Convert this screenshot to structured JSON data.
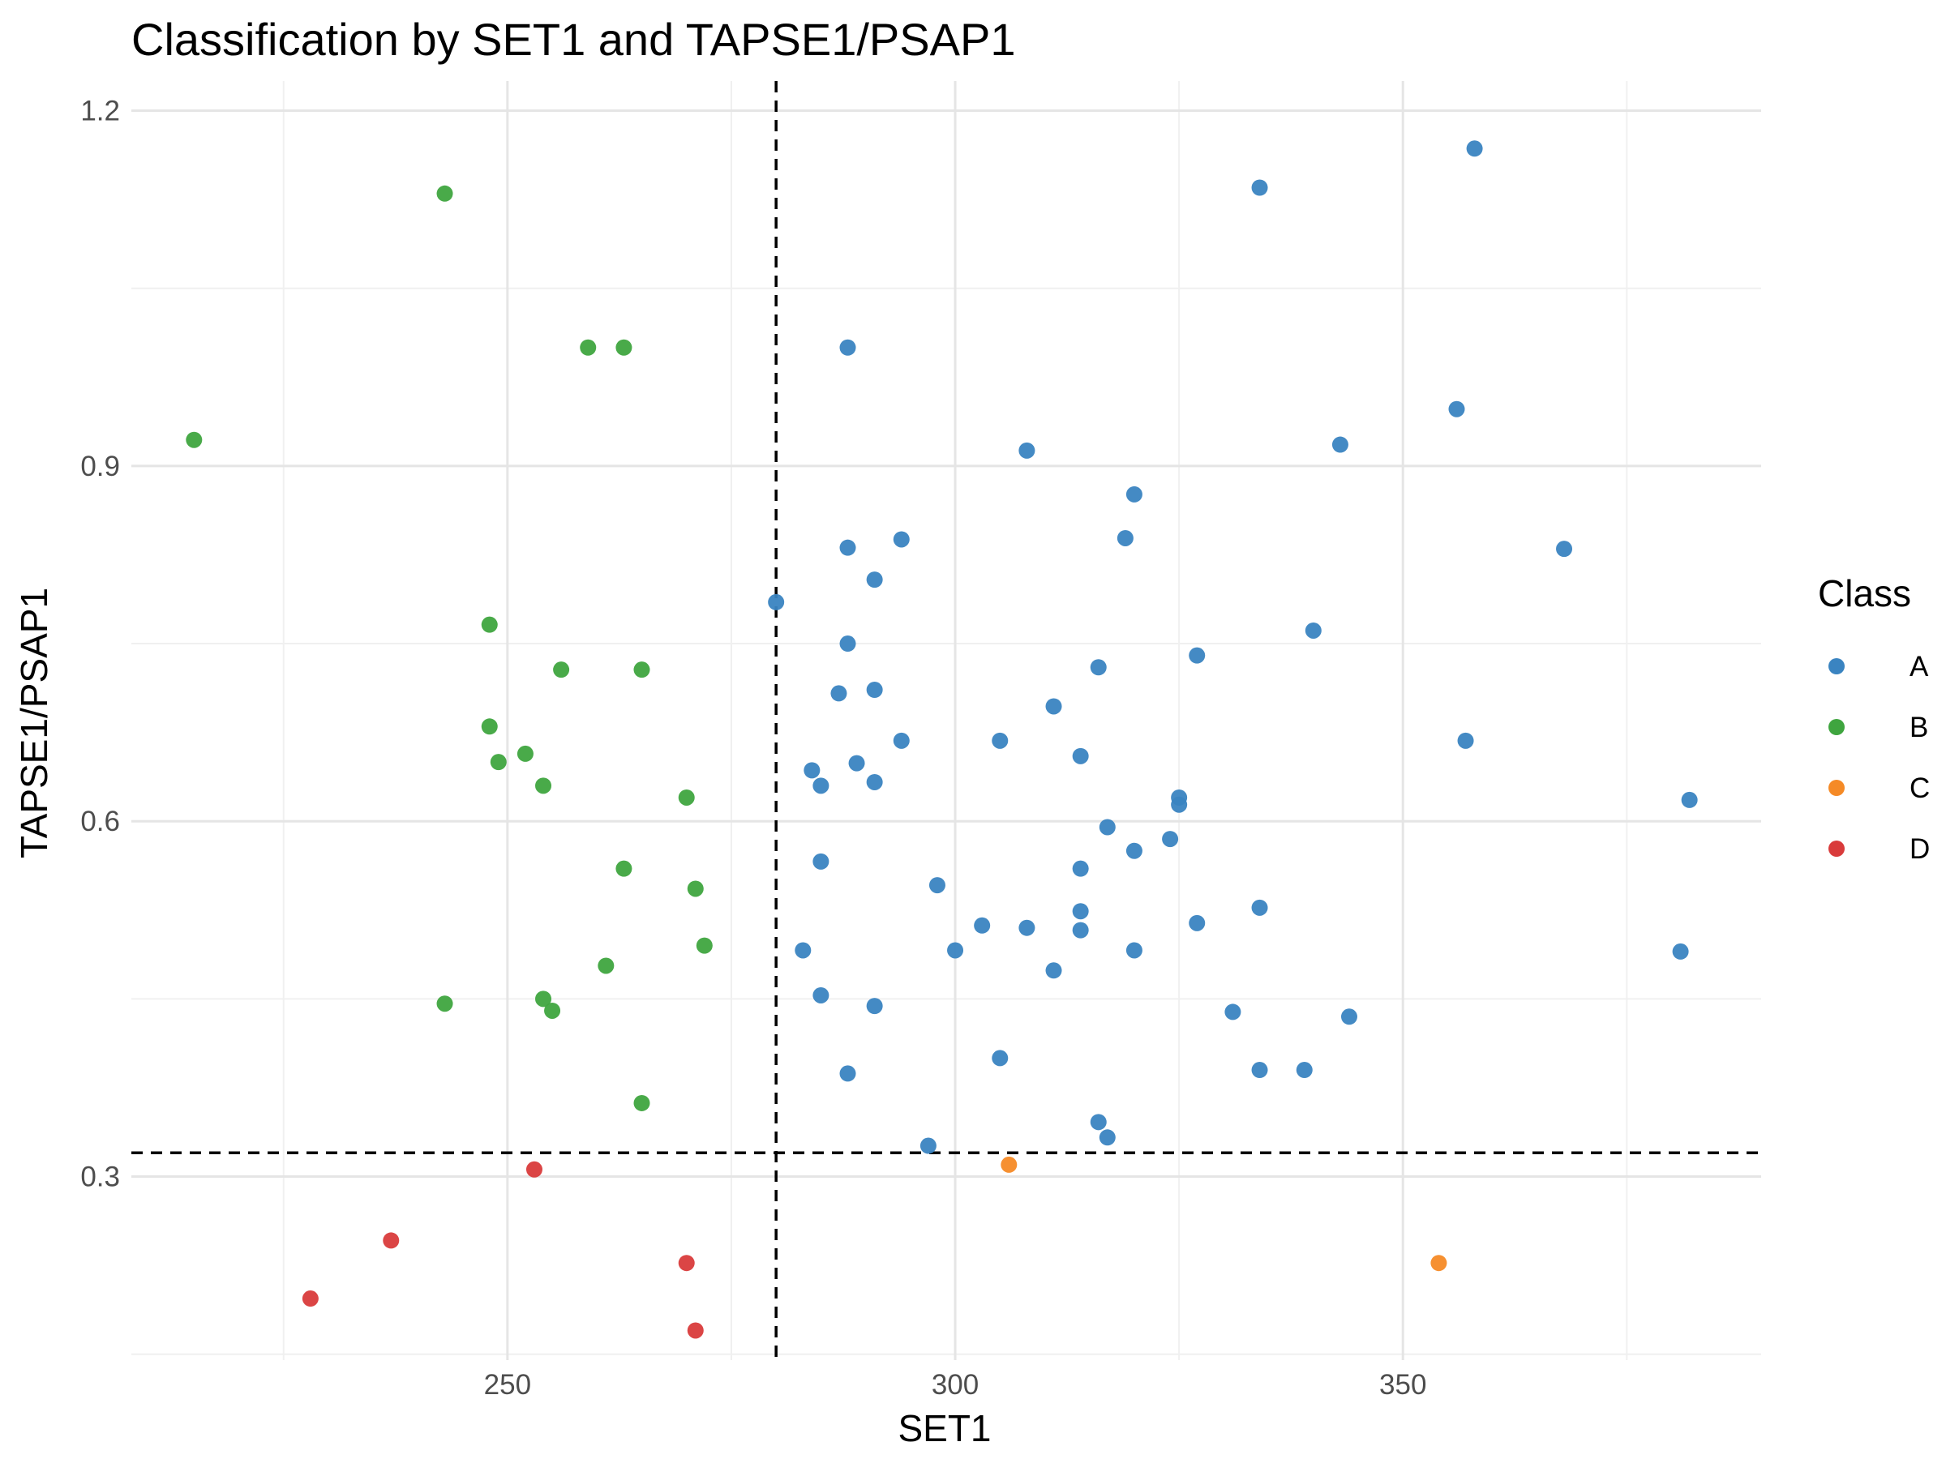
{
  "chart_data": {
    "type": "scatter",
    "title": "Classification by SET1 and TAPSE1/PSAP1",
    "xlabel": "SET1",
    "ylabel": "TAPSE1/PSAP1",
    "xlim": [
      208,
      390
    ],
    "ylim": [
      0.145,
      1.225
    ],
    "x_ticks": [
      250,
      300,
      350
    ],
    "x_tick_labels": [
      "250",
      "300",
      "350"
    ],
    "y_ticks": [
      0.3,
      0.6,
      0.9,
      1.2
    ],
    "y_tick_labels": [
      "0.3",
      "0.6",
      "0.9",
      "1.2"
    ],
    "grid": true,
    "thresholds": {
      "x": 280,
      "y": 0.32
    },
    "legend": {
      "title": "Class",
      "placement": "right"
    },
    "series": [
      {
        "name": "A",
        "color": "#3a84c1",
        "points": [
          [
            358,
            1.168
          ],
          [
            334,
            1.135
          ],
          [
            288,
            1.0
          ],
          [
            356,
            0.948
          ],
          [
            343,
            0.918
          ],
          [
            308,
            0.913
          ],
          [
            320,
            0.876
          ],
          [
            319,
            0.839
          ],
          [
            294,
            0.838
          ],
          [
            288,
            0.831
          ],
          [
            368,
            0.83
          ],
          [
            291,
            0.804
          ],
          [
            280,
            0.785
          ],
          [
            340,
            0.761
          ],
          [
            288,
            0.75
          ],
          [
            327,
            0.74
          ],
          [
            316,
            0.73
          ],
          [
            291,
            0.711
          ],
          [
            287,
            0.708
          ],
          [
            311,
            0.697
          ],
          [
            294,
            0.668
          ],
          [
            305,
            0.668
          ],
          [
            357,
            0.668
          ],
          [
            314,
            0.655
          ],
          [
            289,
            0.649
          ],
          [
            284,
            0.643
          ],
          [
            285,
            0.63
          ],
          [
            291,
            0.633
          ],
          [
            325,
            0.62
          ],
          [
            382,
            0.618
          ],
          [
            325,
            0.614
          ],
          [
            317,
            0.595
          ],
          [
            324,
            0.585
          ],
          [
            320,
            0.575
          ],
          [
            285,
            0.566
          ],
          [
            314,
            0.56
          ],
          [
            298,
            0.546
          ],
          [
            334,
            0.527
          ],
          [
            314,
            0.524
          ],
          [
            327,
            0.514
          ],
          [
            303,
            0.512
          ],
          [
            308,
            0.51
          ],
          [
            314,
            0.508
          ],
          [
            300,
            0.491
          ],
          [
            283,
            0.491
          ],
          [
            320,
            0.491
          ],
          [
            381,
            0.49
          ],
          [
            311,
            0.474
          ],
          [
            285,
            0.453
          ],
          [
            291,
            0.444
          ],
          [
            331,
            0.439
          ],
          [
            344,
            0.435
          ],
          [
            305,
            0.4
          ],
          [
            288,
            0.387
          ],
          [
            334,
            0.39
          ],
          [
            339,
            0.39
          ],
          [
            316,
            0.346
          ],
          [
            317,
            0.333
          ],
          [
            297,
            0.326
          ]
        ]
      },
      {
        "name": "B",
        "color": "#3fa53f",
        "points": [
          [
            243,
            1.13
          ],
          [
            259,
            1.0
          ],
          [
            263,
            1.0
          ],
          [
            215,
            0.922
          ],
          [
            248,
            0.766
          ],
          [
            256,
            0.728
          ],
          [
            265,
            0.728
          ],
          [
            248,
            0.68
          ],
          [
            252,
            0.657
          ],
          [
            249,
            0.65
          ],
          [
            254,
            0.63
          ],
          [
            270,
            0.62
          ],
          [
            263,
            0.56
          ],
          [
            271,
            0.543
          ],
          [
            272,
            0.495
          ],
          [
            261,
            0.478
          ],
          [
            243,
            0.446
          ],
          [
            254,
            0.45
          ],
          [
            255,
            0.44
          ],
          [
            265,
            0.362
          ]
        ]
      },
      {
        "name": "C",
        "color": "#f58a26",
        "points": [
          [
            306,
            0.31
          ],
          [
            354,
            0.227
          ]
        ]
      },
      {
        "name": "D",
        "color": "#d93b3b",
        "points": [
          [
            253,
            0.306
          ],
          [
            237,
            0.246
          ],
          [
            270,
            0.227
          ],
          [
            228,
            0.197
          ],
          [
            271,
            0.17
          ]
        ]
      }
    ]
  }
}
